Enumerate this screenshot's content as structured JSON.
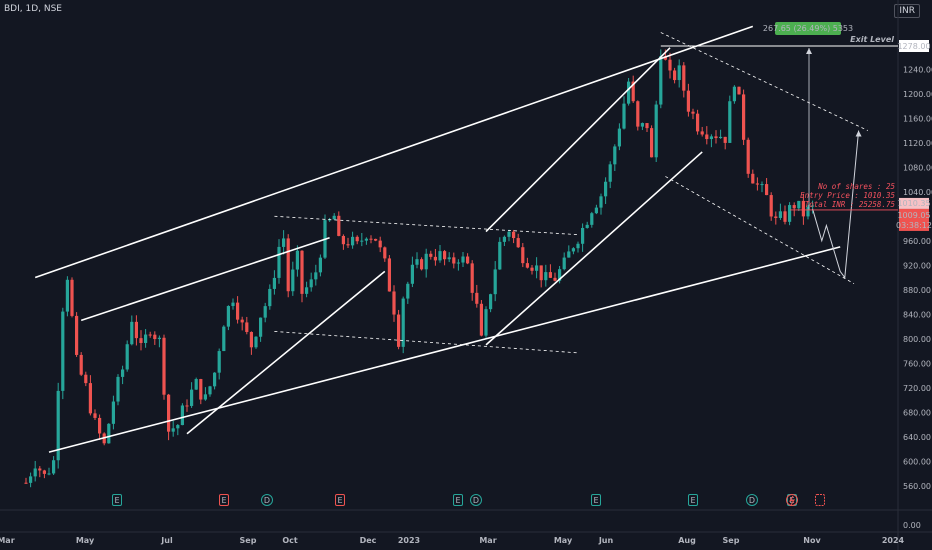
{
  "header": {
    "symbol": "BDI, 1D, NSE",
    "currency": "INR"
  },
  "chart_data": {
    "type": "candlestick",
    "symbol": "BDI",
    "interval": "1D",
    "exchange": "NSE",
    "currency": "INR",
    "ylim": [
      530,
      1290
    ],
    "yticks": [
      "1240.00",
      "1200.00",
      "1160.00",
      "1120.00",
      "1080.00",
      "1040.00",
      "960.00",
      "920.00",
      "880.00",
      "840.00",
      "800.00",
      "760.00",
      "720.00",
      "680.00",
      "640.00",
      "600.00",
      "560.00"
    ],
    "secondary_tick": "0.00",
    "xticks": [
      "Mar",
      "May",
      "Jul",
      "Sep",
      "Oct",
      "Dec",
      "2023",
      "Mar",
      "May",
      "Jun",
      "Aug",
      "Sep",
      "Nov",
      "2024"
    ],
    "price_path": [
      [
        0,
        565
      ],
      [
        2,
        600
      ],
      [
        4,
        575
      ],
      [
        6,
        600
      ],
      [
        8,
        855
      ],
      [
        9,
        905
      ],
      [
        11,
        760
      ],
      [
        13,
        720
      ],
      [
        15,
        660
      ],
      [
        17,
        625
      ],
      [
        19,
        700
      ],
      [
        21,
        750
      ],
      [
        23,
        835
      ],
      [
        25,
        780
      ],
      [
        27,
        820
      ],
      [
        29,
        795
      ],
      [
        31,
        650
      ],
      [
        33,
        660
      ],
      [
        35,
        700
      ],
      [
        37,
        725
      ],
      [
        39,
        700
      ],
      [
        41,
        745
      ],
      [
        43,
        830
      ],
      [
        45,
        870
      ],
      [
        47,
        820
      ],
      [
        49,
        790
      ],
      [
        51,
        840
      ],
      [
        53,
        870
      ],
      [
        55,
        950
      ],
      [
        56,
        965
      ],
      [
        57,
        880
      ],
      [
        59,
        930
      ],
      [
        60,
        875
      ],
      [
        62,
        890
      ],
      [
        63,
        910
      ],
      [
        65,
        980
      ],
      [
        67,
        1000
      ],
      [
        68,
        955
      ],
      [
        70,
        960
      ],
      [
        72,
        950
      ],
      [
        74,
        975
      ],
      [
        76,
        965
      ],
      [
        78,
        920
      ],
      [
        80,
        850
      ],
      [
        81,
        800
      ],
      [
        82,
        870
      ],
      [
        84,
        910
      ],
      [
        86,
        925
      ],
      [
        88,
        940
      ],
      [
        90,
        935
      ],
      [
        92,
        920
      ],
      [
        94,
        935
      ],
      [
        96,
        920
      ],
      [
        98,
        850
      ],
      [
        99,
        795
      ],
      [
        101,
        880
      ],
      [
        103,
        955
      ],
      [
        105,
        980
      ],
      [
        107,
        945
      ],
      [
        109,
        930
      ],
      [
        111,
        915
      ],
      [
        113,
        895
      ],
      [
        115,
        900
      ],
      [
        117,
        920
      ],
      [
        119,
        955
      ],
      [
        121,
        980
      ],
      [
        123,
        1015
      ],
      [
        125,
        1035
      ],
      [
        127,
        1080
      ],
      [
        129,
        1150
      ],
      [
        131,
        1220
      ],
      [
        133,
        1140
      ],
      [
        135,
        1150
      ],
      [
        136,
        1090
      ],
      [
        138,
        1275
      ],
      [
        140,
        1225
      ],
      [
        142,
        1235
      ],
      [
        144,
        1180
      ],
      [
        146,
        1150
      ],
      [
        148,
        1140
      ],
      [
        150,
        1135
      ],
      [
        152,
        1130
      ],
      [
        154,
        1225
      ],
      [
        155,
        1185
      ],
      [
        157,
        1080
      ],
      [
        159,
        1050
      ],
      [
        161,
        1030
      ],
      [
        163,
        990
      ],
      [
        165,
        1000
      ],
      [
        167,
        1020
      ],
      [
        169,
        1005
      ],
      [
        171,
        1012
      ],
      [
        172,
        1009
      ]
    ],
    "lines": [
      {
        "name": "upper-channel-top",
        "points": [
          [
            2,
            900
          ],
          [
            158,
            1310
          ]
        ]
      },
      {
        "name": "rising-support",
        "points": [
          [
            5,
            615
          ],
          [
            177,
            950
          ]
        ]
      },
      {
        "name": "wedge-upper-1",
        "points": [
          [
            12,
            830
          ],
          [
            66,
            965
          ]
        ]
      },
      {
        "name": "wedge-lower-1",
        "points": [
          [
            35,
            645
          ],
          [
            78,
            910
          ]
        ]
      },
      {
        "name": "mid-resistance",
        "points": [
          [
            54,
            1000
          ],
          [
            120,
            970
          ]
        ]
      },
      {
        "name": "mid-support",
        "points": [
          [
            54,
            812
          ],
          [
            120,
            777
          ]
        ]
      },
      {
        "name": "wedge-upper-2",
        "points": [
          [
            100,
            975
          ],
          [
            140,
            1275
          ]
        ]
      },
      {
        "name": "wedge-lower-2",
        "points": [
          [
            100,
            790
          ],
          [
            147,
            1105
          ]
        ]
      },
      {
        "name": "falling-channel-top",
        "points": [
          [
            138,
            1300
          ],
          [
            183,
            1140
          ]
        ]
      },
      {
        "name": "falling-channel-bottom",
        "points": [
          [
            139,
            1065
          ],
          [
            180,
            890
          ]
        ]
      }
    ],
    "projection": [
      [
        171,
        1012
      ],
      [
        173,
        960
      ],
      [
        174,
        985
      ],
      [
        177,
        910
      ],
      [
        178,
        900
      ],
      [
        181,
        1140
      ]
    ],
    "exit_level": {
      "label": "Exit Level",
      "price": 1278,
      "tag": "1278.00"
    },
    "gain_box": "267.65 (26.49%) 5353",
    "position_notes": [
      "No of shares : 25",
      "Entry Price  : 1010.35",
      "Total INR   : 25258.75"
    ],
    "entry_price_tag": "1010.35",
    "last_price_tag": "1009.05",
    "countdown_tag": "03:38:12",
    "event_markers": [
      "E",
      "E",
      "D",
      "E",
      "E",
      "D",
      "E",
      "E",
      "D",
      "E"
    ],
    "colors": {
      "up": "#26a69a",
      "down": "#ef5350",
      "line": "#ffffff",
      "note": "#f7525f",
      "gain": "#4caf50",
      "exit_tag": "#ffffff"
    }
  }
}
